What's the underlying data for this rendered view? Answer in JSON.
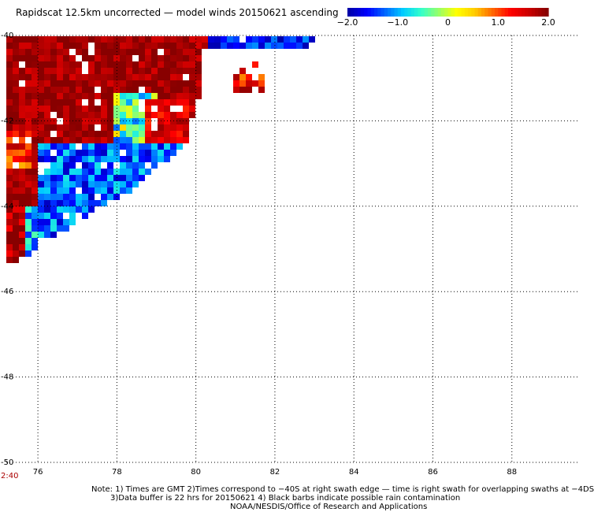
{
  "title": "Rapidscat 12.5km uncorrected — model winds 20150621 ascending",
  "colorbar": {
    "tick_labels": [
      "−2.0",
      "−1.0",
      "0",
      "1.0",
      "2.0"
    ],
    "min": -2.0,
    "max": 2.0,
    "colors": [
      "#0000aa",
      "#0000ff",
      "#0066ff",
      "#00ccff",
      "#33ffcc",
      "#99ff66",
      "#ffff00",
      "#ffcc00",
      "#ff6600",
      "#ff0000",
      "#cc0000",
      "#880000"
    ]
  },
  "map": {
    "lon_labels": [
      "76",
      "78",
      "80",
      "82",
      "84",
      "86",
      "88"
    ],
    "lat_labels": [
      "-40",
      "-42",
      "-44",
      "-46",
      "-48",
      "-50"
    ],
    "lon_range": [
      75.2,
      89.7
    ],
    "lat_range": [
      -50,
      -40
    ]
  },
  "timestamp": "2:40",
  "notes": {
    "line1": "Note: 1) Times are GMT 2)Times correspond to −40S at right swath edge — time is right swath for overlapping swaths at −4DS",
    "line2": "3)Data buffer is 22 hrs for 20150621 4) Black barbs indicate possible rain contamination",
    "line3": "NOAA/NESDIS/Office of Research and Applications"
  }
}
